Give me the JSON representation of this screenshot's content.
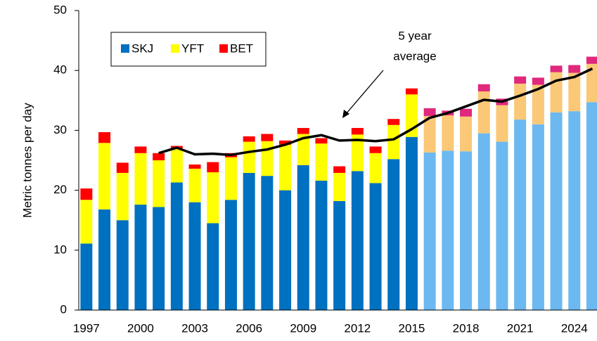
{
  "chart_data": {
    "type": "bar",
    "stacked": true,
    "ylabel": "Metric tonnes per day",
    "categories": [
      "1997",
      null,
      null,
      "2000",
      null,
      null,
      "2003",
      null,
      null,
      "2006",
      null,
      null,
      "2009",
      null,
      null,
      "2012",
      null,
      null,
      "2015",
      null,
      null,
      "2018",
      null,
      null,
      "2021",
      null,
      null,
      "2024",
      null
    ],
    "series": [
      {
        "name": "SKJ",
        "color": "#0070c0",
        "colors": [
          "#0070c0",
          "#0070c0",
          "#0070c0",
          "#0070c0",
          "#0070c0",
          "#0070c0",
          "#0070c0",
          "#0070c0",
          "#0070c0",
          "#0070c0",
          "#0070c0",
          "#0070c0",
          "#0070c0",
          "#0070c0",
          "#0070c0",
          "#0070c0",
          "#0070c0",
          "#0070c0",
          "#0070c0",
          "#6cb8f0",
          "#6cb8f0",
          "#6cb8f0",
          "#6cb8f0",
          "#6cb8f0",
          "#6cb8f0",
          "#6cb8f0",
          "#6cb8f0",
          "#6cb8f0",
          "#6cb8f0"
        ],
        "values": [
          11.1,
          16.8,
          15.0,
          17.6,
          17.2,
          21.3,
          18.0,
          14.5,
          18.4,
          22.9,
          22.4,
          20.0,
          24.2,
          21.6,
          18.2,
          23.2,
          21.2,
          25.2,
          28.9,
          26.3,
          26.6,
          26.5,
          29.5,
          28.1,
          31.8,
          31.0,
          33.0,
          33.2,
          34.7
        ]
      },
      {
        "name": "YFT",
        "color": "#ffff00",
        "colors": [
          "#ffff00",
          "#ffff00",
          "#ffff00",
          "#ffff00",
          "#ffff00",
          "#ffff00",
          "#ffff00",
          "#ffff00",
          "#ffff00",
          "#ffff00",
          "#ffff00",
          "#ffff00",
          "#ffff00",
          "#ffff00",
          "#ffff00",
          "#ffff00",
          "#ffff00",
          "#ffff00",
          "#ffff00",
          "#fac876",
          "#fac876",
          "#fac876",
          "#fac876",
          "#fac876",
          "#fac876",
          "#fac876",
          "#fac876",
          "#fac876",
          "#fac876"
        ],
        "values": [
          7.3,
          11.1,
          7.9,
          8.6,
          7.8,
          5.7,
          5.6,
          8.5,
          7.1,
          5.2,
          5.8,
          7.6,
          5.2,
          6.2,
          4.7,
          6.1,
          5.0,
          5.7,
          7.1,
          6.1,
          5.9,
          5.8,
          7.0,
          6.1,
          6.0,
          6.6,
          6.7,
          6.4,
          6.4
        ]
      },
      {
        "name": "BET",
        "color": "#ff0000",
        "colors": [
          "#ff0000",
          "#ff0000",
          "#ff0000",
          "#ff0000",
          "#ff0000",
          "#ff0000",
          "#ff0000",
          "#ff0000",
          "#ff0000",
          "#ff0000",
          "#ff0000",
          "#ff0000",
          "#ff0000",
          "#ff0000",
          "#ff0000",
          "#ff0000",
          "#ff0000",
          "#ff0000",
          "#ff0000",
          "#e0287c",
          "#e0287c",
          "#e0287c",
          "#e0287c",
          "#e0287c",
          "#e0287c",
          "#e0287c",
          "#e0287c",
          "#e0287c",
          "#e0287c"
        ],
        "values": [
          1.9,
          1.8,
          1.7,
          1.1,
          1.2,
          0.4,
          0.7,
          1.7,
          0.7,
          0.9,
          1.2,
          0.7,
          1.0,
          0.9,
          1.1,
          1.1,
          1.1,
          1.0,
          1.0,
          1.3,
          0.8,
          1.3,
          1.2,
          1.1,
          1.2,
          1.2,
          1.1,
          1.3,
          1.2
        ]
      }
    ],
    "line": {
      "color": "#000000",
      "values": [
        null,
        null,
        null,
        null,
        26.2,
        27.1,
        26.0,
        26.1,
        25.9,
        26.4,
        26.8,
        27.6,
        28.7,
        29.2,
        28.3,
        28.4,
        28.2,
        28.5,
        30.2,
        32.1,
        32.9,
        34.0,
        35.1,
        34.8,
        35.8,
        36.9,
        38.3,
        38.9,
        40.3
      ]
    },
    "annotation": [
      "5 year",
      "average"
    ],
    "ylim": [
      0,
      50
    ],
    "yticks": [
      0,
      10,
      20,
      30,
      40,
      50
    ]
  }
}
